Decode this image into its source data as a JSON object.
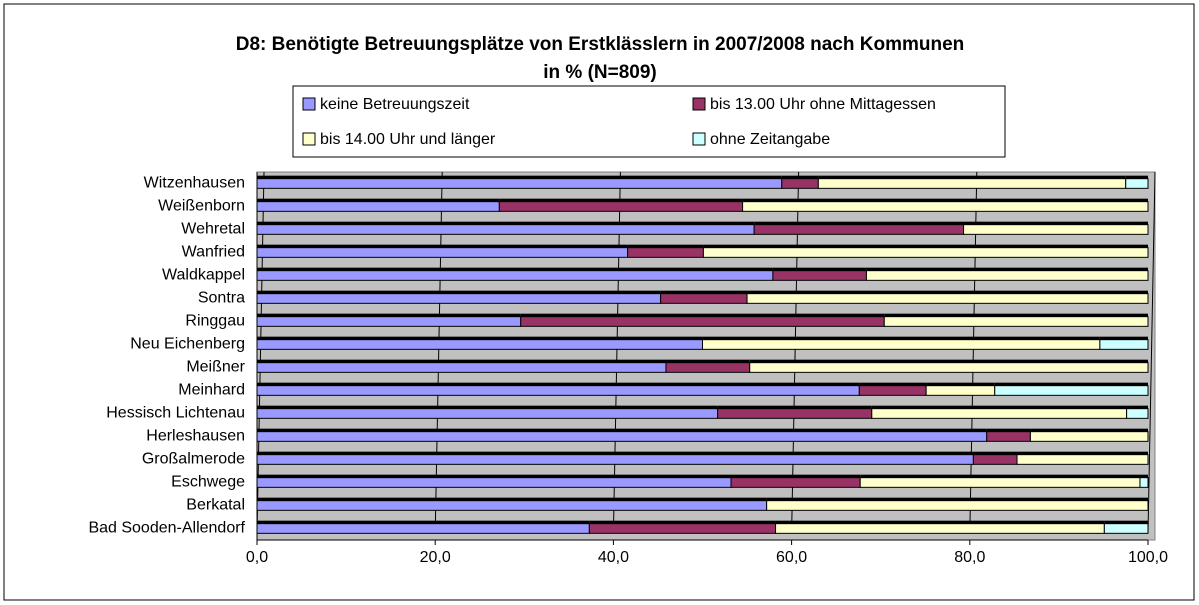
{
  "chart_data": {
    "type": "stacked_bar_horizontal",
    "title": "D8: Benötigte Betreuungsplätze von Erstklässlern in 2007/2008 nach Kommunen",
    "subtitle": "in % (N=809)",
    "categories": [
      "Witzenhausen",
      "Weißenborn",
      "Wehretal",
      "Wanfried",
      "Waldkappel",
      "Sontra",
      "Ringgau",
      "Neu Eichenberg",
      "Meißner",
      "Meinhard",
      "Hessisch Lichtenau",
      "Herleshausen",
      "Großalmerode",
      "Eschwege",
      "Berkatal",
      "Bad Sooden-Allendorf"
    ],
    "series": [
      {
        "name": "keine Betreuungszeit",
        "color": "#9999ff",
        "values": [
          58.9,
          27.2,
          55.8,
          41.6,
          57.9,
          45.3,
          29.6,
          50.0,
          45.9,
          67.6,
          51.7,
          81.9,
          80.4,
          53.2,
          57.2,
          37.3
        ]
      },
      {
        "name": "bis 13.00 Uhr ohne Mittagessen",
        "color": "#993366",
        "values": [
          4.1,
          27.3,
          23.5,
          8.5,
          10.5,
          9.7,
          40.8,
          0,
          9.4,
          7.5,
          17.3,
          4.9,
          4.9,
          14.5,
          0,
          20.9
        ]
      },
      {
        "name": "bis 14.00 Uhr und länger",
        "color": "#ffffcc",
        "values": [
          34.5,
          45.5,
          20.7,
          49.9,
          31.6,
          45.0,
          29.6,
          44.6,
          44.7,
          7.7,
          28.6,
          13.2,
          14.7,
          31.4,
          42.8,
          36.9
        ]
      },
      {
        "name": "ohne Zeitangabe",
        "color": "#ccffff",
        "values": [
          2.5,
          0,
          0,
          0,
          0,
          0,
          0,
          5.4,
          0,
          17.2,
          2.4,
          0,
          0,
          0.9,
          0,
          4.9
        ]
      }
    ],
    "xlim": [
      0,
      100
    ],
    "xticks": [
      {
        "value": 0,
        "label": "0,0"
      },
      {
        "value": 20,
        "label": "20,0"
      },
      {
        "value": 40,
        "label": "40,0"
      },
      {
        "value": 60,
        "label": "60,0"
      },
      {
        "value": 80,
        "label": "80,0"
      },
      {
        "value": 100,
        "label": "100,0"
      }
    ],
    "grid": true,
    "legend": "top"
  }
}
